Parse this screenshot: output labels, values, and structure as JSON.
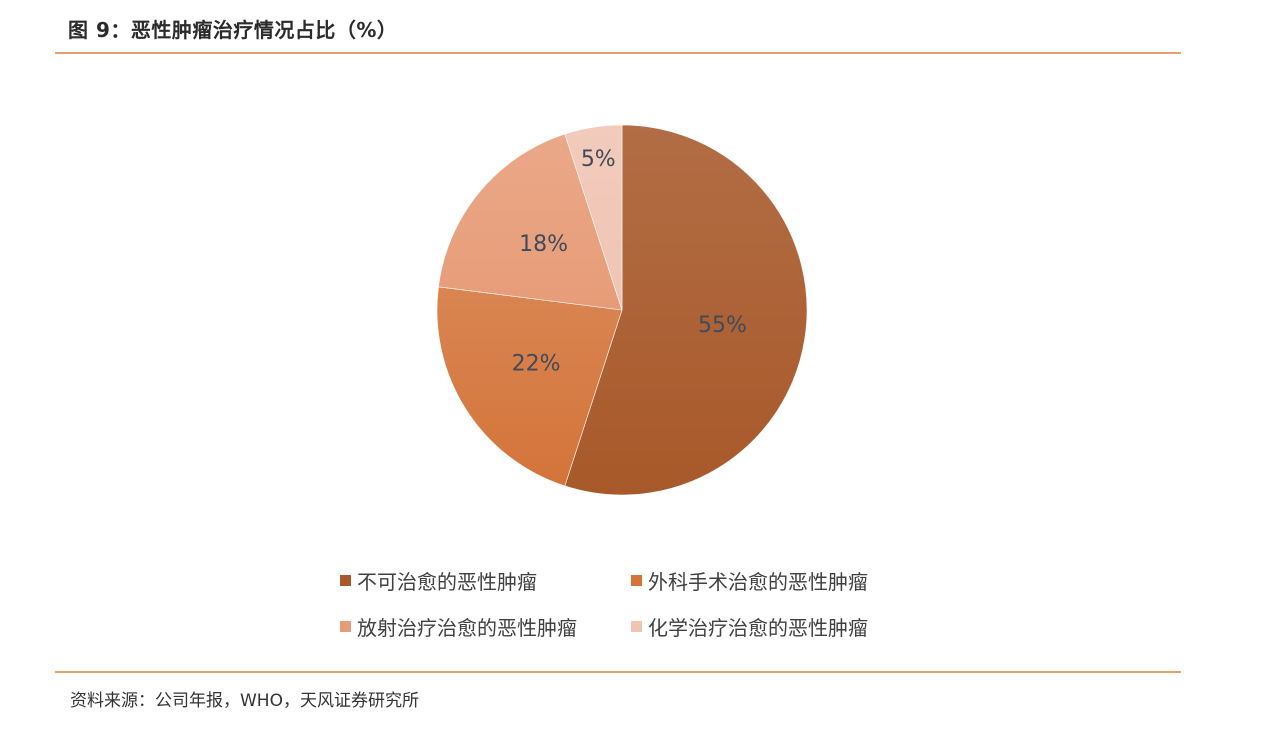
{
  "figure": {
    "title": "图 9：恶性肿瘤治疗情况占比（%）",
    "source": "资料来源：公司年报，WHO，天风证券研究所"
  },
  "chart_data": {
    "type": "pie",
    "title": "恶性肿瘤治疗情况占比（%）",
    "categories": [
      "不可治愈的恶性肿瘤",
      "外科手术治愈的恶性肿瘤",
      "放射治疗治愈的恶性肿瘤",
      "化学治疗治愈的恶性肿瘤"
    ],
    "values": [
      55,
      22,
      18,
      5
    ],
    "labels": [
      "55%",
      "22%",
      "18%",
      "5%"
    ],
    "colors": [
      "#a8592a",
      "#d4743a",
      "#e79c78",
      "#f0c4b3"
    ],
    "start_angle_deg": 0,
    "direction": "clockwise",
    "legend_position": "bottom"
  }
}
